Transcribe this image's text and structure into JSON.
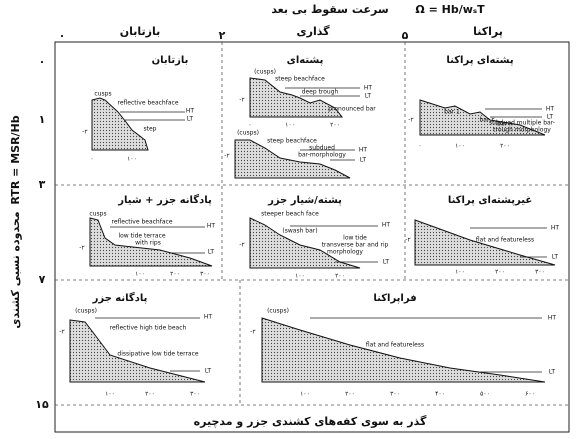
{
  "title": "سرعت سقوط بی بعد",
  "formula": "Ω = Hb/wₛT",
  "columns": [
    "بازتابان",
    "گذاری",
    "پراکنا"
  ],
  "top_scale": [
    "۰",
    "۲",
    "۵"
  ],
  "left_axis": {
    "label": "محدوده نسبی کشندی",
    "formula": "RTR = MSR/Hb",
    "scale": [
      "۰",
      "۱",
      "۳",
      "۷",
      "۱۵"
    ]
  },
  "footer": "گذر به سوی کفه‌های کشندی جزر و مدچیره",
  "panels": [
    {
      "title": "بازتابان",
      "labels": [
        "cusps",
        "reflective beachface",
        "HT",
        "LT",
        "step",
        "-۲",
        "۰",
        "۱۰۰"
      ]
    },
    {
      "title": "پشته‌ای",
      "labels": [
        "(cusps)",
        "steep beachface",
        "HT",
        "LT",
        "deep trough",
        "pronounced bar",
        "-۲",
        "۰",
        "۱۰۰",
        "۲۰۰",
        "(cusps)",
        "steep beachface",
        "subdued",
        "bar-morphology",
        "HT",
        "LT",
        "-۲"
      ]
    },
    {
      "title": "پشته‌ای پراکنا",
      "labels": [
        "bar 1",
        "bar ۲",
        "bar n",
        "subdued multiple bar-",
        "trough morphology",
        "HT",
        "LT",
        "-۲",
        "۰",
        "۱۰۰",
        "۲۰۰"
      ]
    },
    {
      "title": "پادگانه جزر + شیار",
      "labels": [
        "cusps",
        "reflective beachface",
        "low tide terrace",
        "with rips",
        "HT",
        "LT",
        "-۲",
        "۱۰۰",
        "۲۰۰",
        "۳۰۰"
      ]
    },
    {
      "title": "پشته/شیار جزر",
      "labels": [
        "steeper beach face",
        "(swash bar)",
        "low tide",
        "transverse bar and rip",
        "morphology",
        "HT",
        "LT",
        "-۲",
        "۱۰۰",
        "۲۰۰"
      ]
    },
    {
      "title": "غیرپشته‌ای پراکنا",
      "labels": [
        "flat and featureless",
        "HT",
        "LT",
        "-۲",
        "۱۰۰",
        "۲۰۰",
        "۳۰۰"
      ]
    },
    {
      "title": "پادگانه جزر",
      "labels": [
        "(cusps)",
        "reflective high tide beach",
        "dissipative low tide terrace",
        "HT",
        "LT",
        "-۲",
        "۱۰۰",
        "۲۰۰",
        "۳۰۰"
      ]
    },
    {
      "title": "فراپراکنا",
      "labels": [
        "(cusps)",
        "flat and featureless",
        "HT",
        "LT",
        "-۲",
        "۱۰۰",
        "۲۰۰",
        "۳۰۰",
        "۴۰۰",
        "۵۰۰",
        "۶۰۰"
      ]
    }
  ]
}
